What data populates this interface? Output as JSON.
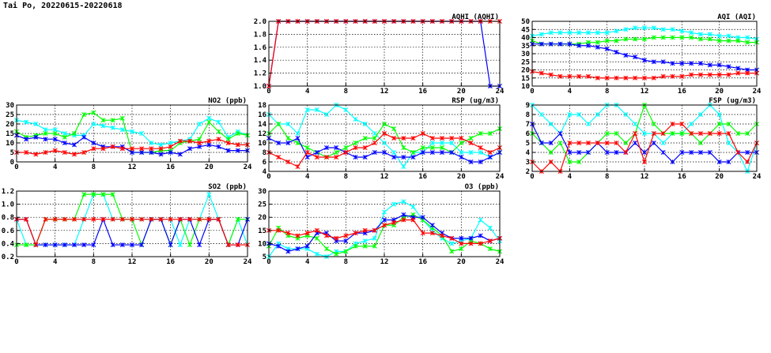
{
  "page": {
    "title": "Tai Po, 20220615-20220618"
  },
  "series_colors": [
    "#ff0000",
    "#00ff00",
    "#00ffff",
    "#0000ff"
  ],
  "chart_data": [
    {
      "id": "aqhi",
      "type": "line",
      "title": "AQHI (AQHI)",
      "xlim": [
        0,
        24
      ],
      "ylim": [
        1.0,
        2.0
      ],
      "xticks": [
        0,
        4,
        8,
        12,
        16,
        20,
        24
      ],
      "yticks": [
        1.0,
        1.2,
        1.4,
        1.6,
        1.8,
        2.0
      ],
      "ytick_labels": [
        "1.0",
        "1.2",
        "1.4",
        "1.6",
        "1.8",
        "2.0"
      ],
      "grid": true,
      "series": [
        {
          "color": "#0000ff",
          "values": [
            1,
            2,
            2,
            2,
            2,
            2,
            2,
            2,
            2,
            2,
            2,
            2,
            2,
            2,
            2,
            2,
            2,
            2,
            2,
            2,
            2,
            2,
            2,
            1,
            1
          ]
        },
        {
          "color": "#ff0000",
          "values": [
            1,
            2,
            2,
            2,
            2,
            2,
            2,
            2,
            2,
            2,
            2,
            2,
            2,
            2,
            2,
            2,
            2,
            2,
            2,
            2,
            2,
            2,
            2,
            2,
            2
          ]
        }
      ]
    },
    {
      "id": "aqi",
      "type": "line",
      "title": "AQI (AQI)",
      "xlim": [
        0,
        24
      ],
      "ylim": [
        10,
        50
      ],
      "xticks": [
        0,
        4,
        8,
        12,
        16,
        20,
        24
      ],
      "yticks": [
        10,
        15,
        20,
        25,
        30,
        35,
        40,
        45,
        50
      ],
      "ytick_labels": [
        "10",
        "15",
        "20",
        "25",
        "30",
        "35",
        "40",
        "45",
        "50"
      ],
      "grid": true,
      "series": [
        {
          "color": "#00ffff",
          "values": [
            41,
            42,
            43,
            43,
            43,
            43,
            43,
            43,
            43,
            44,
            45,
            46,
            46,
            46,
            45,
            45,
            44,
            43,
            42,
            42,
            41,
            41,
            40,
            40,
            39
          ]
        },
        {
          "color": "#00ff00",
          "values": [
            38,
            36,
            36,
            36,
            36,
            36,
            37,
            37,
            38,
            38,
            39,
            39,
            39,
            40,
            40,
            40,
            40,
            40,
            39,
            39,
            38,
            38,
            38,
            37,
            37
          ]
        },
        {
          "color": "#0000ff",
          "values": [
            36,
            36,
            36,
            36,
            36,
            35,
            35,
            34,
            33,
            31,
            29,
            28,
            26,
            25,
            25,
            24,
            24,
            24,
            24,
            23,
            23,
            22,
            21,
            20,
            20
          ]
        },
        {
          "color": "#ff0000",
          "values": [
            19,
            18,
            17,
            16,
            16,
            16,
            16,
            15,
            15,
            15,
            15,
            15,
            15,
            15,
            16,
            16,
            16,
            17,
            17,
            17,
            17,
            17,
            18,
            18,
            18
          ]
        }
      ]
    },
    {
      "id": "no2",
      "type": "line",
      "title": "NO2 (ppb)",
      "xlim": [
        0,
        24
      ],
      "ylim": [
        0,
        30
      ],
      "xticks": [
        0,
        4,
        8,
        12,
        16,
        20,
        24
      ],
      "yticks": [
        0,
        5,
        10,
        15,
        20,
        25,
        30
      ],
      "ytick_labels": [
        "0",
        "5",
        "10",
        "15",
        "20",
        "25",
        "30"
      ],
      "grid": true,
      "series": [
        {
          "color": "#00ffff",
          "values": [
            22,
            21,
            20,
            17,
            17,
            15,
            14,
            14,
            20,
            19,
            18,
            17,
            16,
            15,
            10,
            9,
            10,
            11,
            12,
            20,
            23,
            21,
            13,
            16,
            14
          ]
        },
        {
          "color": "#00ff00",
          "values": [
            16,
            13,
            14,
            15,
            15,
            13,
            15,
            25,
            26,
            22,
            22,
            23,
            5,
            5,
            5,
            6,
            6,
            10,
            11,
            12,
            21,
            16,
            12,
            15,
            14
          ]
        },
        {
          "color": "#0000ff",
          "values": [
            14,
            12,
            13,
            12,
            12,
            10,
            9,
            13,
            10,
            8,
            8,
            8,
            5,
            5,
            5,
            4,
            5,
            4,
            7,
            8,
            9,
            8,
            6,
            6,
            6
          ]
        },
        {
          "color": "#ff0000",
          "values": [
            5,
            5,
            4,
            5,
            6,
            5,
            4,
            5,
            7,
            7,
            8,
            7,
            7,
            7,
            7,
            7,
            8,
            11,
            11,
            10,
            11,
            12,
            10,
            9,
            9
          ]
        }
      ]
    },
    {
      "id": "rsp",
      "type": "line",
      "title": "RSP (ug/m3)",
      "xlim": [
        0,
        24
      ],
      "ylim": [
        4,
        18
      ],
      "xticks": [
        0,
        4,
        8,
        12,
        16,
        20,
        24
      ],
      "yticks": [
        4,
        6,
        8,
        10,
        12,
        14,
        16,
        18
      ],
      "ytick_labels": [
        "4",
        "6",
        "8",
        "10",
        "12",
        "14",
        "16",
        "18"
      ],
      "grid": true,
      "series": [
        {
          "color": "#00ffff",
          "values": [
            16,
            14,
            14,
            12,
            17,
            17,
            16,
            18,
            17,
            15,
            14,
            12,
            10,
            8,
            5,
            8,
            8,
            10,
            10,
            10,
            8,
            8,
            8,
            7,
            8
          ]
        },
        {
          "color": "#00ff00",
          "values": [
            12,
            14,
            11,
            10,
            9,
            8,
            7,
            8,
            9,
            10,
            11,
            11,
            14,
            13,
            9,
            8,
            9,
            9,
            9,
            8,
            10,
            11,
            12,
            12,
            13
          ]
        },
        {
          "color": "#0000ff",
          "values": [
            11,
            10,
            10,
            11,
            7,
            8,
            9,
            9,
            8,
            7,
            7,
            8,
            8,
            7,
            7,
            7,
            8,
            8,
            8,
            8,
            7,
            6,
            6,
            7,
            8
          ]
        },
        {
          "color": "#ff0000",
          "values": [
            8,
            7,
            6,
            5,
            8,
            7,
            7,
            7,
            8,
            9,
            9,
            10,
            12,
            11,
            11,
            11,
            12,
            11,
            11,
            11,
            11,
            10,
            9,
            8,
            9
          ]
        }
      ]
    },
    {
      "id": "fsp",
      "type": "line",
      "title": "FSP (ug/m3)",
      "xlim": [
        0,
        24
      ],
      "ylim": [
        2,
        9
      ],
      "xticks": [
        0,
        4,
        8,
        12,
        16,
        20,
        24
      ],
      "yticks": [
        2,
        3,
        4,
        5,
        6,
        7,
        8,
        9
      ],
      "ytick_labels": [
        "2",
        "3",
        "4",
        "5",
        "6",
        "7",
        "8",
        "9"
      ],
      "grid": true,
      "series": [
        {
          "color": "#00ffff",
          "values": [
            9,
            8,
            7,
            6,
            8,
            8,
            7,
            8,
            9,
            9,
            8,
            7,
            6,
            6,
            5,
            6,
            6,
            7,
            8,
            9,
            8,
            5,
            4,
            2,
            5
          ]
        },
        {
          "color": "#00ff00",
          "values": [
            6,
            5,
            4,
            5,
            3,
            3,
            4,
            5,
            6,
            6,
            5,
            6,
            9,
            7,
            6,
            6,
            6,
            6,
            5,
            6,
            7,
            7,
            6,
            6,
            7
          ]
        },
        {
          "color": "#0000ff",
          "values": [
            7,
            5,
            5,
            6,
            4,
            4,
            4,
            5,
            4,
            4,
            4,
            5,
            4,
            5,
            4,
            3,
            4,
            4,
            4,
            4,
            3,
            3,
            4,
            4,
            4
          ]
        },
        {
          "color": "#ff0000",
          "values": [
            3,
            2,
            3,
            2,
            5,
            5,
            5,
            5,
            5,
            5,
            4,
            6,
            3,
            6,
            6,
            7,
            7,
            6,
            6,
            6,
            6,
            6,
            4,
            3,
            5
          ]
        }
      ]
    },
    {
      "id": "so2",
      "type": "line",
      "title": "SO2 (ppb)",
      "xlim": [
        0,
        24
      ],
      "ylim": [
        0.2,
        1.2
      ],
      "xticks": [
        0,
        4,
        8,
        12,
        16,
        20,
        24
      ],
      "yticks": [
        0.2,
        0.4,
        0.6,
        0.8,
        1.0,
        1.2
      ],
      "ytick_labels": [
        "0.2",
        "0.4",
        "0.6",
        "0.8",
        "1.0",
        "1.2"
      ],
      "grid": true,
      "series": [
        {
          "color": "#00ffff",
          "values": [
            0.77,
            0.38,
            0.38,
            0.38,
            0.38,
            0.38,
            0.38,
            0.77,
            1.15,
            1.15,
            0.77,
            0.77,
            0.77,
            0.77,
            0.77,
            0.77,
            0.77,
            0.38,
            0.77,
            0.77,
            1.15,
            0.77,
            0.38,
            0.77,
            0.38
          ]
        },
        {
          "color": "#00ff00",
          "values": [
            0.38,
            0.38,
            0.38,
            0.77,
            0.77,
            0.77,
            0.77,
            1.15,
            1.15,
            1.15,
            1.15,
            0.77,
            0.77,
            0.38,
            0.77,
            0.77,
            0.38,
            0.77,
            0.38,
            0.77,
            0.77,
            0.77,
            0.38,
            0.77,
            0.77
          ]
        },
        {
          "color": "#0000ff",
          "values": [
            0.77,
            0.77,
            0.38,
            0.38,
            0.38,
            0.38,
            0.38,
            0.38,
            0.38,
            0.77,
            0.38,
            0.38,
            0.38,
            0.38,
            0.77,
            0.77,
            0.38,
            0.77,
            0.77,
            0.38,
            0.77,
            0.77,
            0.38,
            0.38,
            0.77
          ]
        },
        {
          "color": "#ff0000",
          "values": [
            0.77,
            0.77,
            0.38,
            0.77,
            0.77,
            0.77,
            0.77,
            0.77,
            0.77,
            0.77,
            0.77,
            0.77,
            0.77,
            0.77,
            0.77,
            0.77,
            0.77,
            0.77,
            0.77,
            0.77,
            0.77,
            0.77,
            0.38,
            0.38,
            0.38
          ]
        }
      ]
    },
    {
      "id": "o3",
      "type": "line",
      "title": "O3 (ppb)",
      "xlim": [
        0,
        24
      ],
      "ylim": [
        5,
        30
      ],
      "xticks": [
        0,
        4,
        8,
        12,
        16,
        20,
        24
      ],
      "yticks": [
        5,
        10,
        15,
        20,
        25,
        30
      ],
      "ytick_labels": [
        "5",
        "10",
        "15",
        "20",
        "25",
        "30"
      ],
      "grid": true,
      "series": [
        {
          "color": "#00ffff",
          "values": [
            5,
            10,
            8,
            8,
            8,
            6,
            5,
            7,
            7,
            10,
            11,
            12,
            22,
            25,
            26,
            24,
            19,
            15,
            12,
            10,
            11,
            12,
            19,
            16,
            11
          ]
        },
        {
          "color": "#00ff00",
          "values": [
            9,
            16,
            13,
            12,
            13,
            12,
            8,
            6,
            7,
            9,
            9,
            9,
            17,
            17,
            20,
            21,
            19,
            16,
            13,
            7,
            8,
            11,
            10,
            8,
            7
          ]
        },
        {
          "color": "#0000ff",
          "values": [
            10,
            9,
            7,
            8,
            9,
            14,
            14,
            11,
            11,
            14,
            14,
            15,
            19,
            19,
            21,
            20,
            20,
            17,
            14,
            12,
            12,
            12,
            13,
            11,
            12
          ]
        },
        {
          "color": "#ff0000",
          "values": [
            15,
            15,
            14,
            13,
            14,
            15,
            13,
            12,
            13,
            14,
            15,
            15,
            17,
            18,
            19,
            19,
            14,
            14,
            13,
            12,
            10,
            10,
            10,
            11,
            12
          ]
        }
      ]
    }
  ]
}
